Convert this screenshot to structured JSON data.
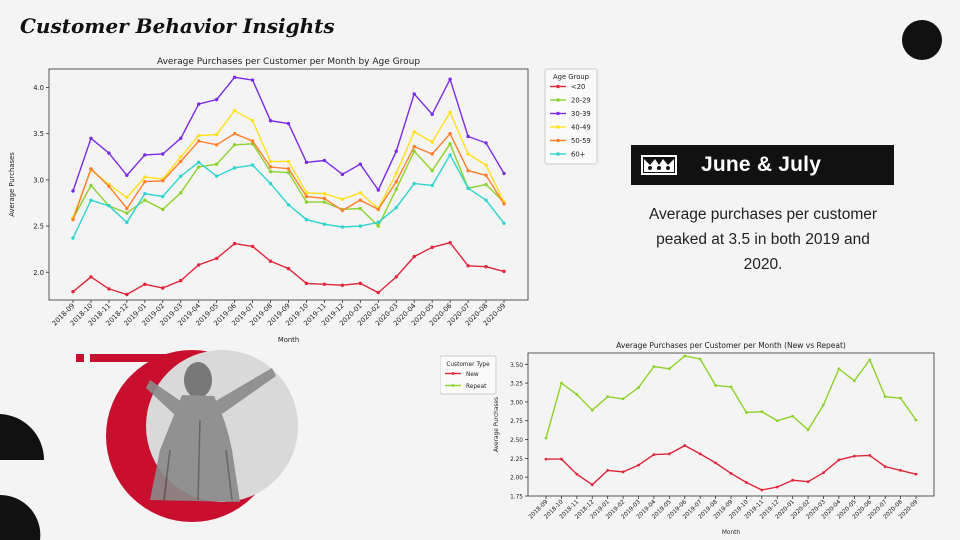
{
  "page": {
    "title": "Customer Behavior Insights"
  },
  "callout": {
    "heading": "June & July",
    "description": "Average purchases per customer peaked at 3.5 in both 2019 and 2020.",
    "icon": "crown-icon"
  },
  "months": [
    "2018-09",
    "2018-10",
    "2018-11",
    "2018-12",
    "2019-01",
    "2019-02",
    "2019-03",
    "2019-04",
    "2019-05",
    "2019-06",
    "2019-07",
    "2019-08",
    "2019-09",
    "2019-10",
    "2019-11",
    "2019-12",
    "2020-01",
    "2020-02",
    "2020-03",
    "2020-04",
    "2020-05",
    "2020-06",
    "2020-07",
    "2020-08",
    "2020-09"
  ],
  "chart_data": [
    {
      "type": "line",
      "title": "Average Purchases per Customer per Month by Age Group",
      "xlabel": "Month",
      "ylabel": "Average Purchases",
      "ylim": [
        1.7,
        4.2
      ],
      "yticks": [
        "2.0",
        "2.5",
        "3.0",
        "3.5",
        "4.0"
      ],
      "legend": {
        "title": "Age Group",
        "placement": "right"
      },
      "series": [
        {
          "name": "<20",
          "color": "#e0263a",
          "values": [
            1.79,
            1.95,
            1.82,
            1.76,
            1.87,
            1.83,
            1.91,
            2.08,
            2.15,
            2.31,
            2.28,
            2.12,
            2.04,
            1.88,
            1.87,
            1.86,
            1.88,
            1.78,
            1.95,
            2.17,
            2.27,
            2.32,
            2.07,
            2.06,
            2.01
          ]
        },
        {
          "name": "20-29",
          "color": "#8bd32c",
          "values": [
            2.58,
            2.94,
            2.72,
            2.64,
            2.78,
            2.68,
            2.86,
            3.14,
            3.17,
            3.38,
            3.39,
            3.09,
            3.08,
            2.76,
            2.76,
            2.68,
            2.69,
            2.5,
            2.9,
            3.31,
            3.1,
            3.39,
            2.91,
            2.95,
            2.76
          ]
        },
        {
          "name": "30-39",
          "color": "#7b2ae3",
          "values": [
            2.88,
            3.45,
            3.29,
            3.05,
            3.27,
            3.28,
            3.45,
            3.82,
            3.87,
            4.11,
            4.08,
            3.64,
            3.61,
            3.19,
            3.21,
            3.06,
            3.17,
            2.89,
            3.31,
            3.93,
            3.71,
            4.09,
            3.47,
            3.4,
            3.07
          ]
        },
        {
          "name": "40-49",
          "color": "#ffe11a",
          "values": [
            2.59,
            3.11,
            2.95,
            2.81,
            3.03,
            3.01,
            3.25,
            3.48,
            3.49,
            3.75,
            3.64,
            3.2,
            3.2,
            2.86,
            2.85,
            2.79,
            2.86,
            2.69,
            3.07,
            3.52,
            3.41,
            3.73,
            3.28,
            3.16,
            2.76
          ]
        },
        {
          "name": "50-59",
          "color": "#ff7f2a",
          "values": [
            2.57,
            3.12,
            2.93,
            2.69,
            2.98,
            2.99,
            3.2,
            3.42,
            3.38,
            3.5,
            3.42,
            3.14,
            3.12,
            2.82,
            2.8,
            2.67,
            2.78,
            2.68,
            2.98,
            3.36,
            3.28,
            3.5,
            3.1,
            3.05,
            2.74
          ]
        },
        {
          "name": "60+",
          "color": "#2fd4d0",
          "values": [
            2.37,
            2.78,
            2.72,
            2.54,
            2.85,
            2.82,
            3.04,
            3.19,
            3.04,
            3.13,
            3.16,
            2.96,
            2.73,
            2.57,
            2.52,
            2.49,
            2.5,
            2.54,
            2.7,
            2.96,
            2.94,
            3.27,
            2.91,
            2.78,
            2.53
          ]
        }
      ]
    },
    {
      "type": "line",
      "title": "Average Purchases per Customer per Month (New vs Repeat)",
      "xlabel": "Month",
      "ylabel": "Average Purchases",
      "ylim": [
        1.75,
        3.65
      ],
      "yticks": [
        "1.75",
        "2.00",
        "2.25",
        "2.50",
        "2.75",
        "3.00",
        "3.25",
        "3.50"
      ],
      "legend": {
        "title": "Customer Type",
        "placement": "outside-left"
      },
      "series": [
        {
          "name": "New",
          "color": "#e0263a",
          "values": [
            2.24,
            2.24,
            2.04,
            1.9,
            2.09,
            2.07,
            2.16,
            2.3,
            2.31,
            2.42,
            2.31,
            2.19,
            2.05,
            1.93,
            1.83,
            1.87,
            1.96,
            1.94,
            2.06,
            2.23,
            2.28,
            2.29,
            2.14,
            2.09,
            2.04
          ]
        },
        {
          "name": "Repeat",
          "color": "#8bd32c",
          "values": [
            2.52,
            3.25,
            3.1,
            2.89,
            3.07,
            3.04,
            3.19,
            3.47,
            3.44,
            3.61,
            3.57,
            3.22,
            3.2,
            2.86,
            2.87,
            2.75,
            2.81,
            2.63,
            2.96,
            3.44,
            3.28,
            3.56,
            3.07,
            3.05,
            2.76
          ]
        }
      ]
    }
  ]
}
